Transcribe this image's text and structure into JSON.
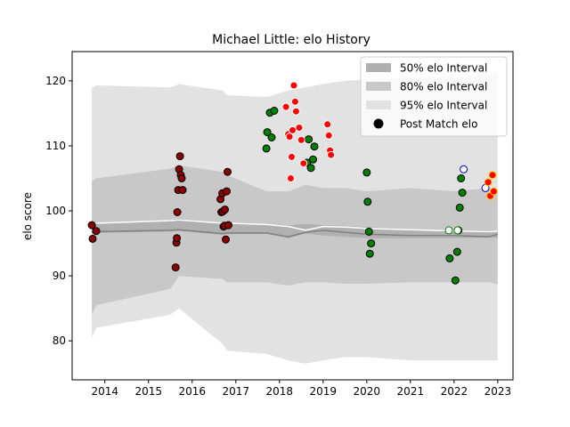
{
  "chart_data": {
    "type": "scatter",
    "title": "Michael Little: elo History",
    "xlabel": "",
    "ylabel": "elo score",
    "xlim": [
      2013.25,
      2023.35
    ],
    "ylim": [
      74,
      124.5
    ],
    "x_ticks": [
      2014,
      2015,
      2016,
      2017,
      2018,
      2019,
      2020,
      2021,
      2022,
      2023
    ],
    "y_ticks": [
      80,
      90,
      100,
      110,
      120
    ],
    "grid": false,
    "legend_position": "top-right",
    "legend": [
      {
        "label": "50% elo Interval",
        "kind": "band",
        "color": "#b0b0b0"
      },
      {
        "label": "80% elo Interval",
        "kind": "band",
        "color": "#c8c8c8"
      },
      {
        "label": "95% elo Interval",
        "kind": "band",
        "color": "#e2e2e2"
      },
      {
        "label": "Post Match elo",
        "kind": "marker",
        "color": "#000000"
      }
    ],
    "colors": {
      "band95": "#e2e2e2",
      "band80": "#c8c8c8",
      "band50": "#b0b0b0",
      "mean_line": "#ffffff",
      "median_line": "#808080",
      "darkred": "#8b0000",
      "green": "#008000",
      "red": "#ff0000",
      "blue_edge": "#0000cd",
      "yellow_edge": "#ffd700"
    },
    "bands": {
      "x": [
        2013.7,
        2013.8,
        2015.5,
        2015.7,
        2016.7,
        2016.8,
        2017.7,
        2018.2,
        2018.6,
        2019.0,
        2019.5,
        2020.0,
        2021.0,
        2022.0,
        2022.8,
        2023.0
      ],
      "upper95": [
        119.0,
        119.3,
        119.0,
        119.5,
        118.5,
        117.8,
        117.5,
        118.5,
        119.0,
        119.5,
        120.0,
        120.2,
        120.5,
        120.5,
        121.0,
        121.5
      ],
      "upper80": [
        104.5,
        105.0,
        106.5,
        107.0,
        106.0,
        105.5,
        103.0,
        103.0,
        104.0,
        103.5,
        103.5,
        103.0,
        103.5,
        103.0,
        103.5,
        103.0
      ],
      "upper50": [
        98.0,
        98.2,
        98.6,
        98.8,
        98.2,
        98.2,
        98.0,
        97.8,
        98.0,
        97.8,
        97.7,
        97.5,
        97.2,
        97.0,
        97.0,
        97.0
      ],
      "lower50": [
        96.5,
        96.6,
        96.8,
        96.9,
        96.3,
        96.4,
        96.5,
        95.8,
        96.5,
        96.2,
        96.0,
        95.8,
        95.8,
        95.8,
        95.9,
        95.8
      ],
      "lower80": [
        84.0,
        85.5,
        88.0,
        90.0,
        89.5,
        89.0,
        89.0,
        88.5,
        89.0,
        89.0,
        88.8,
        88.8,
        89.0,
        89.0,
        89.0,
        88.7
      ],
      "lower95": [
        80.5,
        82.0,
        84.0,
        85.0,
        79.5,
        78.5,
        78.0,
        77.0,
        76.5,
        77.0,
        77.5,
        77.5,
        77.0,
        77.0,
        77.0,
        77.0
      ],
      "mean": [
        98.0,
        98.1,
        98.5,
        98.6,
        98.1,
        98.1,
        97.9,
        97.6,
        97.0,
        97.6,
        97.5,
        97.3,
        97.1,
        96.9,
        96.8,
        96.9
      ],
      "median": [
        96.7,
        96.8,
        97.0,
        97.1,
        96.5,
        96.6,
        96.6,
        96.0,
        96.7,
        97.0,
        96.7,
        96.4,
        96.2,
        96.2,
        96.0,
        96.4
      ]
    },
    "series": [
      {
        "group": "darkred",
        "fill": "#8b0000",
        "edge": "#000000",
        "x": [
          2013.7,
          2013.72,
          2013.8,
          2015.62,
          2015.64,
          2015.65,
          2015.66,
          2015.68,
          2015.7,
          2015.72,
          2015.74,
          2015.76,
          2015.78,
          2016.65,
          2016.67,
          2016.69,
          2016.7,
          2016.72,
          2016.74,
          2016.75,
          2016.77,
          2016.79,
          2016.81,
          2016.83
        ],
        "y": [
          97.8,
          95.7,
          96.9,
          91.3,
          95.1,
          95.8,
          99.8,
          103.2,
          106.4,
          108.4,
          105.5,
          105.0,
          103.2,
          101.8,
          99.8,
          102.7,
          99.9,
          97.6,
          97.7,
          100.2,
          95.6,
          103.0,
          106.0,
          97.8
        ]
      },
      {
        "group": "green",
        "fill": "#008000",
        "edge": "#000000",
        "x": [
          2017.7,
          2017.72,
          2017.78,
          2017.82,
          2017.88,
          2018.63,
          2018.67,
          2018.72,
          2018.77,
          2018.8,
          2020.0,
          2020.02,
          2020.05,
          2020.07,
          2020.1,
          2021.9,
          2022.03,
          2022.07,
          2022.1,
          2022.13,
          2022.16
        ],
        "y": [
          109.6,
          112.1,
          115.1,
          111.3,
          115.4,
          107.4,
          111.0,
          106.6,
          107.9,
          109.9,
          105.9,
          101.4,
          96.8,
          93.4,
          95.0,
          92.7,
          89.3,
          93.7,
          97.0,
          100.5,
          105.0
        ],
        "extra_x": [
          2022.19
        ],
        "extra_y": [
          102.8
        ]
      },
      {
        "group": "red",
        "fill": "#ff0000",
        "edge": "#ffffff",
        "x": [
          2018.2,
          2018.23,
          2018.26,
          2018.28,
          2018.3,
          2018.33,
          2018.36,
          2018.38,
          2018.45,
          2018.5,
          2018.55,
          2019.1,
          2019.13,
          2019.16,
          2019.18
        ],
        "y": [
          111.8,
          111.4,
          105.0,
          108.3,
          112.4,
          119.3,
          116.8,
          115.3,
          112.8,
          110.9,
          107.3,
          113.3,
          111.6,
          109.3,
          108.6
        ],
        "extra_x": [
          2018.15
        ],
        "extra_y": [
          116.0
        ]
      },
      {
        "group": "white-green",
        "fill": "#ffffff",
        "edge": "#008000",
        "x": [
          2021.88,
          2022.08
        ],
        "y": [
          97.0,
          97.0
        ]
      },
      {
        "group": "white-blue",
        "fill": "#ffffff",
        "edge": "#0000cd",
        "x": [
          2022.22,
          2022.72
        ],
        "y": [
          106.4,
          103.5
        ]
      },
      {
        "group": "red-yellow",
        "fill": "#ff0000",
        "edge": "#ffd700",
        "x": [
          2022.78,
          2022.83,
          2022.88,
          2022.91
        ],
        "y": [
          104.4,
          102.3,
          105.5,
          103.0
        ]
      }
    ]
  }
}
